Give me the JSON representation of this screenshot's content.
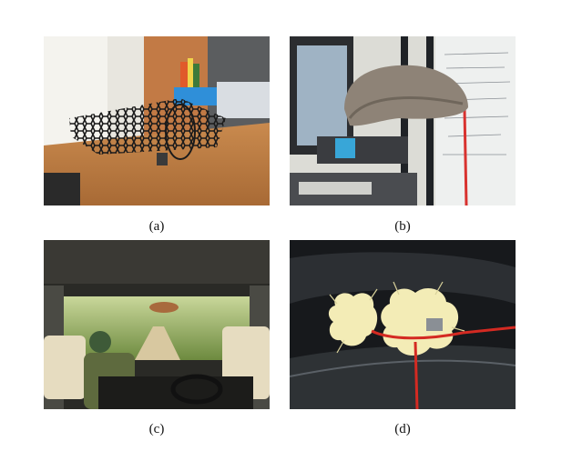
{
  "figure": {
    "panels": [
      {
        "id": "a",
        "caption": "(a)"
      },
      {
        "id": "b",
        "caption": "(b)"
      },
      {
        "id": "c",
        "caption": "(c)"
      },
      {
        "id": "d",
        "caption": "(d)"
      }
    ]
  }
}
